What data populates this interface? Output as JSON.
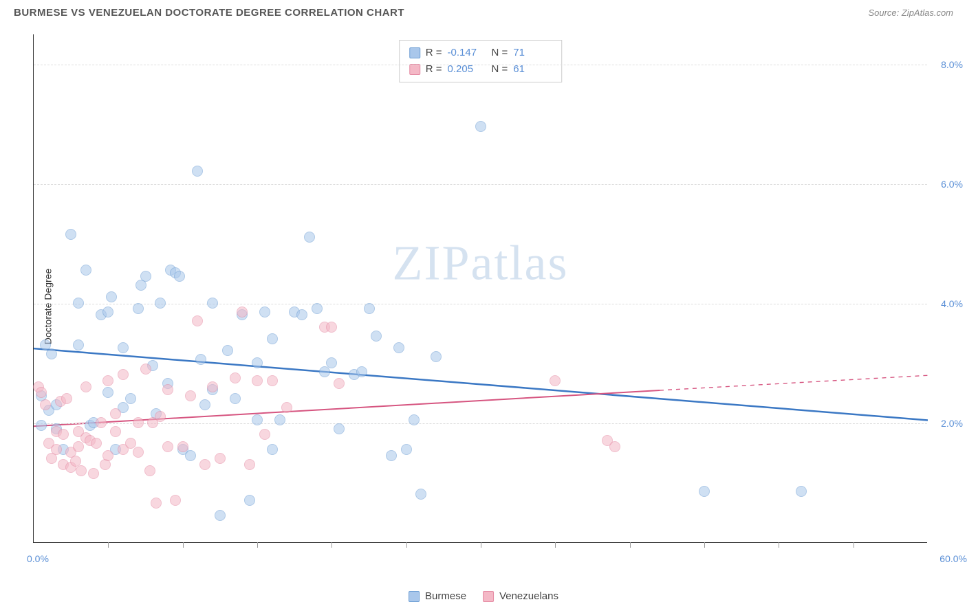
{
  "header": {
    "title": "BURMESE VS VENEZUELAN DOCTORATE DEGREE CORRELATION CHART",
    "source": "Source: ZipAtlas.com"
  },
  "watermark": {
    "zip": "ZIP",
    "atlas": "atlas"
  },
  "chart": {
    "type": "scatter",
    "ylabel": "Doctorate Degree",
    "xlim": [
      0,
      60
    ],
    "ylim": [
      0,
      8.5
    ],
    "x_start_label": "0.0%",
    "x_end_label": "60.0%",
    "y_ticks": [
      2.0,
      4.0,
      6.0,
      8.0
    ],
    "y_tick_labels": [
      "2.0%",
      "4.0%",
      "6.0%",
      "8.0%"
    ],
    "x_tick_positions": [
      5,
      10,
      15,
      20,
      25,
      30,
      35,
      40,
      45,
      50,
      55
    ],
    "grid_color": "#dddddd",
    "background_color": "#ffffff",
    "marker_radius": 8,
    "marker_opacity": 0.55,
    "series": [
      {
        "name": "Burmese",
        "color_fill": "#a9c7eb",
        "color_stroke": "#6d9ed4",
        "trend_color": "#3b78c4",
        "trend_width": 2.5,
        "R": "-0.147",
        "N": "71",
        "trend": {
          "x1": 0,
          "y1": 3.25,
          "x2": 60,
          "y2": 2.05
        },
        "points": [
          [
            0.5,
            2.45
          ],
          [
            0.5,
            1.95
          ],
          [
            0.8,
            3.3
          ],
          [
            1.0,
            2.2
          ],
          [
            1.2,
            3.15
          ],
          [
            1.5,
            1.9
          ],
          [
            1.5,
            2.3
          ],
          [
            2.0,
            1.55
          ],
          [
            2.5,
            5.15
          ],
          [
            3.0,
            4.0
          ],
          [
            3.0,
            3.3
          ],
          [
            3.5,
            4.55
          ],
          [
            3.8,
            1.95
          ],
          [
            4.0,
            2.0
          ],
          [
            4.5,
            3.8
          ],
          [
            5.0,
            3.85
          ],
          [
            5.0,
            2.5
          ],
          [
            5.2,
            4.1
          ],
          [
            5.5,
            1.55
          ],
          [
            6.0,
            3.25
          ],
          [
            6.0,
            2.25
          ],
          [
            6.5,
            2.4
          ],
          [
            7.0,
            3.9
          ],
          [
            7.2,
            4.3
          ],
          [
            7.5,
            4.45
          ],
          [
            8.0,
            2.95
          ],
          [
            8.2,
            2.15
          ],
          [
            8.5,
            4.0
          ],
          [
            9.0,
            2.65
          ],
          [
            9.2,
            4.55
          ],
          [
            9.5,
            4.5
          ],
          [
            9.8,
            4.45
          ],
          [
            10.0,
            1.55
          ],
          [
            10.5,
            1.45
          ],
          [
            11.0,
            6.2
          ],
          [
            11.2,
            3.05
          ],
          [
            11.5,
            2.3
          ],
          [
            12.0,
            4.0
          ],
          [
            12.0,
            2.55
          ],
          [
            12.5,
            0.45
          ],
          [
            13.0,
            3.2
          ],
          [
            13.5,
            2.4
          ],
          [
            14.0,
            3.8
          ],
          [
            14.5,
            0.7
          ],
          [
            15.0,
            3.0
          ],
          [
            15.0,
            2.05
          ],
          [
            15.5,
            3.85
          ],
          [
            16.0,
            1.55
          ],
          [
            16.0,
            3.4
          ],
          [
            16.5,
            2.05
          ],
          [
            17.5,
            3.85
          ],
          [
            18.0,
            3.8
          ],
          [
            18.5,
            5.1
          ],
          [
            19.0,
            3.9
          ],
          [
            19.5,
            2.85
          ],
          [
            20.0,
            3.0
          ],
          [
            20.5,
            1.9
          ],
          [
            21.5,
            2.8
          ],
          [
            22.0,
            2.85
          ],
          [
            22.5,
            3.9
          ],
          [
            23.0,
            3.45
          ],
          [
            24.0,
            1.45
          ],
          [
            24.5,
            3.25
          ],
          [
            25.0,
            1.55
          ],
          [
            25.5,
            2.05
          ],
          [
            26.0,
            0.8
          ],
          [
            27.0,
            3.1
          ],
          [
            30.0,
            6.95
          ],
          [
            45.0,
            0.85
          ],
          [
            51.5,
            0.85
          ]
        ]
      },
      {
        "name": "Venezuelans",
        "color_fill": "#f4b8c6",
        "color_stroke": "#e58aa3",
        "trend_color": "#d65580",
        "trend_width": 2,
        "R": "0.205",
        "N": "61",
        "trend": {
          "x1": 0,
          "y1": 1.95,
          "x2": 42,
          "y2": 2.55
        },
        "trend_dash": {
          "x1": 42,
          "y1": 2.55,
          "x2": 60,
          "y2": 2.8
        },
        "points": [
          [
            0.3,
            2.6
          ],
          [
            0.5,
            2.5
          ],
          [
            0.8,
            2.3
          ],
          [
            1.0,
            1.65
          ],
          [
            1.2,
            1.4
          ],
          [
            1.5,
            1.85
          ],
          [
            1.5,
            1.55
          ],
          [
            1.8,
            2.35
          ],
          [
            2.0,
            1.8
          ],
          [
            2.0,
            1.3
          ],
          [
            2.2,
            2.4
          ],
          [
            2.5,
            1.5
          ],
          [
            2.5,
            1.25
          ],
          [
            2.8,
            1.35
          ],
          [
            3.0,
            1.6
          ],
          [
            3.0,
            1.85
          ],
          [
            3.2,
            1.2
          ],
          [
            3.5,
            1.75
          ],
          [
            3.5,
            2.6
          ],
          [
            3.8,
            1.7
          ],
          [
            4.0,
            1.15
          ],
          [
            4.2,
            1.65
          ],
          [
            4.5,
            2.0
          ],
          [
            4.8,
            1.3
          ],
          [
            5.0,
            2.7
          ],
          [
            5.0,
            1.45
          ],
          [
            5.5,
            1.85
          ],
          [
            5.5,
            2.15
          ],
          [
            6.0,
            1.55
          ],
          [
            6.0,
            2.8
          ],
          [
            6.5,
            1.65
          ],
          [
            7.0,
            2.0
          ],
          [
            7.0,
            1.5
          ],
          [
            7.5,
            2.9
          ],
          [
            7.8,
            1.2
          ],
          [
            8.0,
            2.0
          ],
          [
            8.2,
            0.65
          ],
          [
            8.5,
            2.1
          ],
          [
            9.0,
            2.55
          ],
          [
            9.0,
            1.6
          ],
          [
            9.5,
            0.7
          ],
          [
            10.0,
            1.6
          ],
          [
            10.5,
            2.45
          ],
          [
            11.0,
            3.7
          ],
          [
            11.5,
            1.3
          ],
          [
            12.0,
            2.6
          ],
          [
            12.5,
            1.4
          ],
          [
            13.5,
            2.75
          ],
          [
            14.0,
            3.85
          ],
          [
            14.5,
            1.3
          ],
          [
            15.0,
            2.7
          ],
          [
            15.5,
            1.8
          ],
          [
            16.0,
            2.7
          ],
          [
            17.0,
            2.25
          ],
          [
            19.5,
            3.6
          ],
          [
            20.0,
            3.6
          ],
          [
            20.5,
            2.65
          ],
          [
            35.0,
            2.7
          ],
          [
            38.5,
            1.7
          ],
          [
            39.0,
            1.6
          ]
        ]
      }
    ]
  },
  "legend": {
    "series1_label": "Burmese",
    "series2_label": "Venezuelans",
    "swatch1_fill": "#a9c7eb",
    "swatch1_stroke": "#6d9ed4",
    "swatch2_fill": "#f4b8c6",
    "swatch2_stroke": "#e58aa3"
  },
  "stats": {
    "r_label": "R =",
    "n_label": "N ="
  }
}
